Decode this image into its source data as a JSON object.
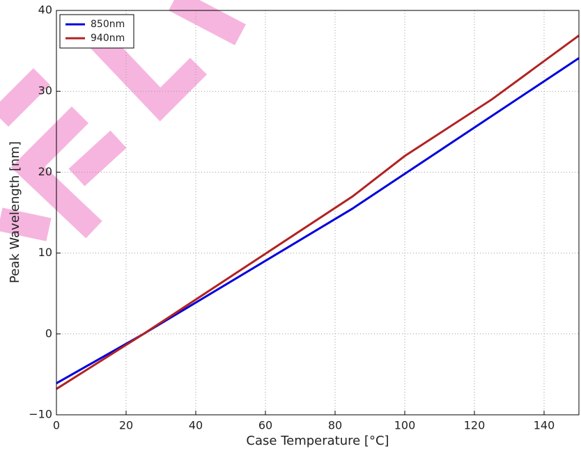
{
  "chart_data": {
    "type": "line",
    "xlabel": "Case Temperature [°C]",
    "ylabel": "Peak Wavelength [nm]",
    "series": [
      {
        "name": "850nm",
        "color": "#0000dd",
        "x": [
          0,
          25,
          85,
          100,
          150
        ],
        "values": [
          -6.1,
          0,
          15.5,
          19.8,
          34.1
        ]
      },
      {
        "name": "940nm",
        "color": "#b22222",
        "x": [
          0,
          25,
          85,
          100,
          125,
          150
        ],
        "values": [
          -6.8,
          0,
          17,
          22,
          29,
          36.9
        ]
      }
    ],
    "xlim": [
      0,
      150
    ],
    "xticks": [
      0,
      20,
      40,
      60,
      80,
      100,
      120,
      140
    ],
    "ylim": [
      -10,
      40
    ],
    "yticks": [
      {
        "value": -10,
        "label": "−10"
      },
      0,
      10,
      20,
      30,
      40
    ],
    "grid": true,
    "legend": "upper-left"
  }
}
